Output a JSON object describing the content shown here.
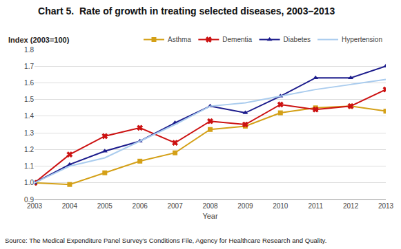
{
  "chart_data": {
    "type": "line",
    "title": "Chart 5.  Rate of growth in treating selected diseases, 2003–2013",
    "ylabel": "Index (2003=100)",
    "xlabel": "Year",
    "annotations": [
      "Source: The Medical Expenditure Panel Survey’s Conditions File, Agency for Healthcare Research and Quality."
    ],
    "x": [
      2003,
      2004,
      2005,
      2006,
      2007,
      2008,
      2009,
      2010,
      2011,
      2012,
      2013
    ],
    "series": [
      {
        "name": "Asthma",
        "color": "#D4A017",
        "marker": "square",
        "values": [
          1.0,
          0.99,
          1.06,
          1.13,
          1.18,
          1.32,
          1.34,
          1.42,
          1.45,
          1.46,
          1.43
        ]
      },
      {
        "name": "Dementia",
        "color": "#CC1111",
        "marker": "x",
        "values": [
          1.0,
          1.17,
          1.28,
          1.33,
          1.24,
          1.37,
          1.35,
          1.47,
          1.44,
          1.46,
          1.56
        ]
      },
      {
        "name": "Diabetes",
        "color": "#1C1C8C",
        "marker": "triangle-up",
        "values": [
          1.0,
          1.11,
          1.19,
          1.25,
          1.36,
          1.46,
          1.42,
          1.52,
          1.63,
          1.63,
          1.7
        ]
      },
      {
        "name": "Hypertension",
        "color": "#AACCEE",
        "marker": "none",
        "values": [
          1.0,
          1.1,
          1.15,
          1.25,
          1.35,
          1.46,
          1.48,
          1.52,
          1.56,
          1.59,
          1.62
        ]
      }
    ],
    "xlim": [
      2003,
      2013
    ],
    "xticks": [
      2003,
      2004,
      2005,
      2006,
      2007,
      2008,
      2009,
      2010,
      2011,
      2012,
      2013
    ],
    "ylim": [
      0.9,
      1.8
    ],
    "yticks": [
      0.9,
      {
        "value": 1.0,
        "label": "1.0"
      },
      1.1,
      1.2,
      1.3,
      1.4,
      1.5,
      1.6,
      1.7,
      1.8
    ],
    "grid": true,
    "legend": "top"
  }
}
